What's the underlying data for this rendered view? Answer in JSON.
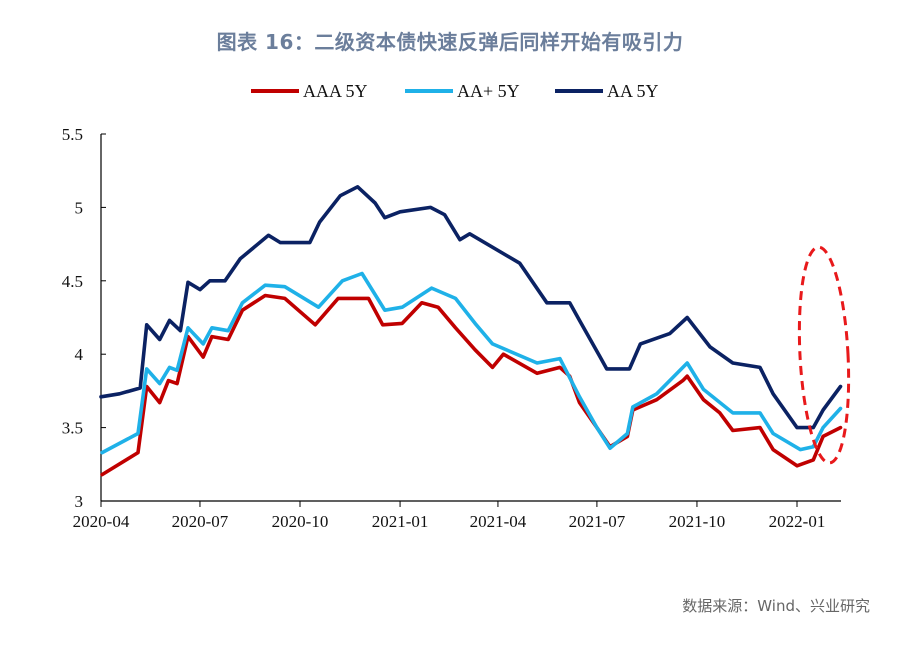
{
  "title": "图表 16：二级资本债快速反弹后同样开始有吸引力",
  "source": "数据来源：Wind、兴业研究",
  "chart_data": {
    "type": "line",
    "title": "图表 16：二级资本债快速反弹后同样开始有吸引力",
    "xlabel": "",
    "ylabel": "",
    "ylim": [
      3,
      5.5
    ],
    "yticks": [
      "3",
      "3.5",
      "4",
      "4.5",
      "5",
      "5.5"
    ],
    "xlim": [
      "2020-04-01",
      "2022-02-28"
    ],
    "xticks": [
      "2020-04",
      "2020-07",
      "2020-10",
      "2021-01",
      "2021-04",
      "2021-07",
      "2021-10",
      "2022-01"
    ],
    "grid": false,
    "legend_position": "top",
    "annotation": "red dashed ellipse around 2022-01 to 2022-02 rebound",
    "series": [
      {
        "name": "AAA 5Y",
        "color": "#C00000",
        "x": [
          "2020-04-02",
          "2020-05-05",
          "2020-05-13",
          "2020-05-25",
          "2020-06-02",
          "2020-06-10",
          "2020-06-20",
          "2020-07-04",
          "2020-07-12",
          "2020-07-27",
          "2020-08-09",
          "2020-08-30",
          "2020-09-17",
          "2020-10-15",
          "2020-11-05",
          "2020-12-03",
          "2020-12-16",
          "2021-01-03",
          "2021-01-21",
          "2021-02-05",
          "2021-02-21",
          "2021-03-11",
          "2021-03-27",
          "2021-04-06",
          "2021-05-07",
          "2021-05-28",
          "2021-06-06",
          "2021-06-15",
          "2021-07-01",
          "2021-07-13",
          "2021-07-29",
          "2021-08-03",
          "2021-08-25",
          "2021-09-18",
          "2021-09-22",
          "2021-10-07",
          "2021-10-22",
          "2021-11-03",
          "2021-11-28",
          "2021-12-10",
          "2022-01-01",
          "2022-01-16",
          "2022-01-25",
          "2022-02-10"
        ],
        "y": [
          3.18,
          3.33,
          3.78,
          3.67,
          3.82,
          3.8,
          4.12,
          3.98,
          4.12,
          4.1,
          4.3,
          4.4,
          4.38,
          4.2,
          4.38,
          4.38,
          4.2,
          4.21,
          4.35,
          4.32,
          4.18,
          4.03,
          3.91,
          4.0,
          3.87,
          3.91,
          3.85,
          3.67,
          3.5,
          3.37,
          3.44,
          3.62,
          3.69,
          3.82,
          3.85,
          3.69,
          3.6,
          3.48,
          3.5,
          3.35,
          3.24,
          3.28,
          3.44,
          3.5
        ]
      },
      {
        "name": "AA+ 5Y",
        "color": "#1FB1E8",
        "x": [
          "2020-04-02",
          "2020-05-05",
          "2020-05-13",
          "2020-05-25",
          "2020-06-03",
          "2020-06-10",
          "2020-06-20",
          "2020-07-04",
          "2020-07-12",
          "2020-07-27",
          "2020-08-09",
          "2020-08-30",
          "2020-09-17",
          "2020-10-18",
          "2020-11-09",
          "2020-11-27",
          "2020-12-18",
          "2021-01-03",
          "2021-01-30",
          "2021-02-21",
          "2021-03-11",
          "2021-03-27",
          "2021-05-07",
          "2021-05-28",
          "2021-06-15",
          "2021-07-01",
          "2021-07-13",
          "2021-07-29",
          "2021-08-03",
          "2021-08-25",
          "2021-09-22",
          "2021-10-07",
          "2021-11-03",
          "2021-11-28",
          "2021-12-10",
          "2022-01-04",
          "2022-01-16",
          "2022-01-25",
          "2022-02-10"
        ],
        "y": [
          3.33,
          3.46,
          3.9,
          3.8,
          3.91,
          3.89,
          4.18,
          4.07,
          4.18,
          4.16,
          4.35,
          4.47,
          4.46,
          4.32,
          4.5,
          4.55,
          4.3,
          4.32,
          4.45,
          4.38,
          4.21,
          4.07,
          3.94,
          3.97,
          3.71,
          3.5,
          3.36,
          3.46,
          3.64,
          3.73,
          3.94,
          3.76,
          3.6,
          3.6,
          3.46,
          3.35,
          3.37,
          3.5,
          3.63
        ]
      },
      {
        "name": "AA 5Y",
        "color": "#0B2263",
        "x": [
          "2020-04-01",
          "2020-04-18",
          "2020-05-07",
          "2020-05-13",
          "2020-05-25",
          "2020-06-03",
          "2020-06-13",
          "2020-06-20",
          "2020-07-01",
          "2020-07-10",
          "2020-07-24",
          "2020-08-07",
          "2020-09-02",
          "2020-09-13",
          "2020-10-10",
          "2020-10-19",
          "2020-11-07",
          "2020-11-23",
          "2020-12-09",
          "2020-12-18",
          "2021-01-01",
          "2021-01-29",
          "2021-02-11",
          "2021-02-25",
          "2021-03-06",
          "2021-04-21",
          "2021-05-16",
          "2021-06-06",
          "2021-06-15",
          "2021-07-04",
          "2021-07-10",
          "2021-07-31",
          "2021-08-10",
          "2021-09-06",
          "2021-09-22",
          "2021-10-13",
          "2021-11-03",
          "2021-11-28",
          "2021-12-10",
          "2022-01-01",
          "2022-01-16",
          "2022-01-25",
          "2022-02-10"
        ],
        "y": [
          3.71,
          3.73,
          3.77,
          4.2,
          4.1,
          4.23,
          4.16,
          4.49,
          4.44,
          4.5,
          4.5,
          4.65,
          4.81,
          4.76,
          4.76,
          4.9,
          5.08,
          5.14,
          5.03,
          4.93,
          4.97,
          5.0,
          4.95,
          4.78,
          4.82,
          4.62,
          4.35,
          4.35,
          4.23,
          3.98,
          3.9,
          3.9,
          4.07,
          4.14,
          4.25,
          4.05,
          3.94,
          3.91,
          3.73,
          3.5,
          3.5,
          3.62,
          3.78
        ]
      }
    ]
  }
}
